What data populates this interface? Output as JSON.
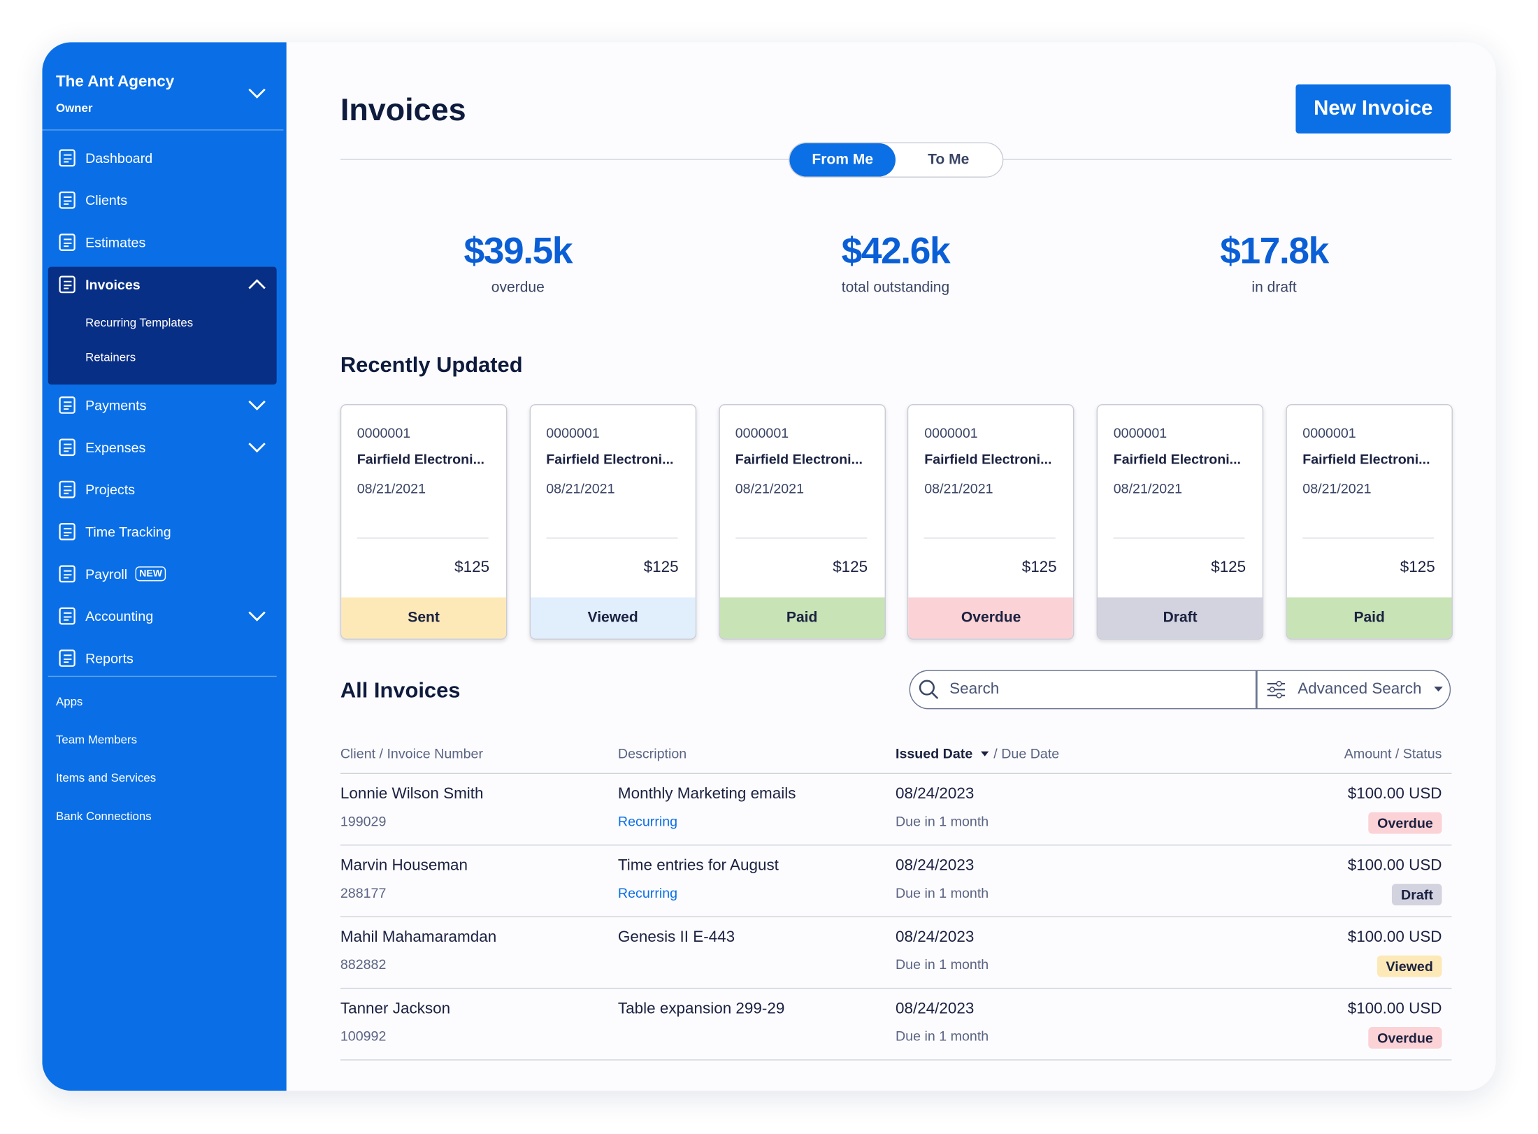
{
  "sidebar": {
    "org": "The Ant Agency",
    "role": "Owner",
    "nav": [
      {
        "label": "Dashboard"
      },
      {
        "label": "Clients"
      },
      {
        "label": "Estimates"
      },
      {
        "label": "Invoices",
        "active": true,
        "expanded": true,
        "has_submenu": true,
        "children": [
          "Recurring Templates",
          "Retainers"
        ]
      },
      {
        "label": "Payments",
        "has_submenu": true
      },
      {
        "label": "Expenses",
        "has_submenu": true
      },
      {
        "label": "Projects"
      },
      {
        "label": "Time Tracking"
      },
      {
        "label": "Payroll",
        "badge": "NEW"
      },
      {
        "label": "Accounting",
        "has_submenu": true
      },
      {
        "label": "Reports"
      }
    ],
    "links": [
      "Apps",
      "Team Members",
      "Items and Services",
      "Bank Connections"
    ]
  },
  "header": {
    "title": "Invoices",
    "button": "New Invoice",
    "toggle": [
      "From Me",
      "To Me"
    ],
    "toggle_active": 0
  },
  "stats": [
    {
      "value": "$39.5k",
      "label": "overdue"
    },
    {
      "value": "$42.6k",
      "label": "total outstanding"
    },
    {
      "value": "$17.8k",
      "label": "in draft"
    }
  ],
  "recent": {
    "title": "Recently Updated",
    "cards": [
      {
        "number": "0000001",
        "client": "Fairfield Electroni...",
        "date": "08/21/2021",
        "amount": "$125",
        "status": "Sent"
      },
      {
        "number": "0000001",
        "client": "Fairfield Electroni...",
        "date": "08/21/2021",
        "amount": "$125",
        "status": "Viewed"
      },
      {
        "number": "0000001",
        "client": "Fairfield Electroni...",
        "date": "08/21/2021",
        "amount": "$125",
        "status": "Paid"
      },
      {
        "number": "0000001",
        "client": "Fairfield Electroni...",
        "date": "08/21/2021",
        "amount": "$125",
        "status": "Overdue"
      },
      {
        "number": "0000001",
        "client": "Fairfield Electroni...",
        "date": "08/21/2021",
        "amount": "$125",
        "status": "Draft"
      },
      {
        "number": "0000001",
        "client": "Fairfield Electroni...",
        "date": "08/21/2021",
        "amount": "$125",
        "status": "Paid"
      }
    ]
  },
  "all": {
    "title": "All Invoices",
    "search": "Search",
    "advanced": "Advanced Search",
    "columns": {
      "client": "Client / Invoice Number",
      "description": "Description",
      "issued": "Issued Date",
      "due": "/ Due Date",
      "amount": "Amount / Status"
    },
    "rows": [
      {
        "client": "Lonnie Wilson Smith",
        "number": "199029",
        "description": "Monthly Marketing emails",
        "tag": "Recurring",
        "issued": "08/24/2023",
        "due": "Due in 1 month",
        "amount": "$100.00 USD",
        "status": "Overdue"
      },
      {
        "client": "Marvin Houseman",
        "number": "288177",
        "description": "Time entries for August",
        "tag": "Recurring",
        "issued": "08/24/2023",
        "due": "Due in 1 month",
        "amount": "$100.00 USD",
        "status": "Draft"
      },
      {
        "client": "Mahil Mahamaramdan",
        "number": "882882",
        "description": "Genesis II E-443",
        "issued": "08/24/2023",
        "due": "Due in 1 month",
        "amount": "$100.00 USD",
        "status": "Viewed"
      },
      {
        "client": "Tanner Jackson",
        "number": "100992",
        "description": "Table expansion 299-29",
        "issued": "08/24/2023",
        "due": "Due in 1 month",
        "amount": "$100.00 USD",
        "status": "Overdue"
      }
    ]
  }
}
